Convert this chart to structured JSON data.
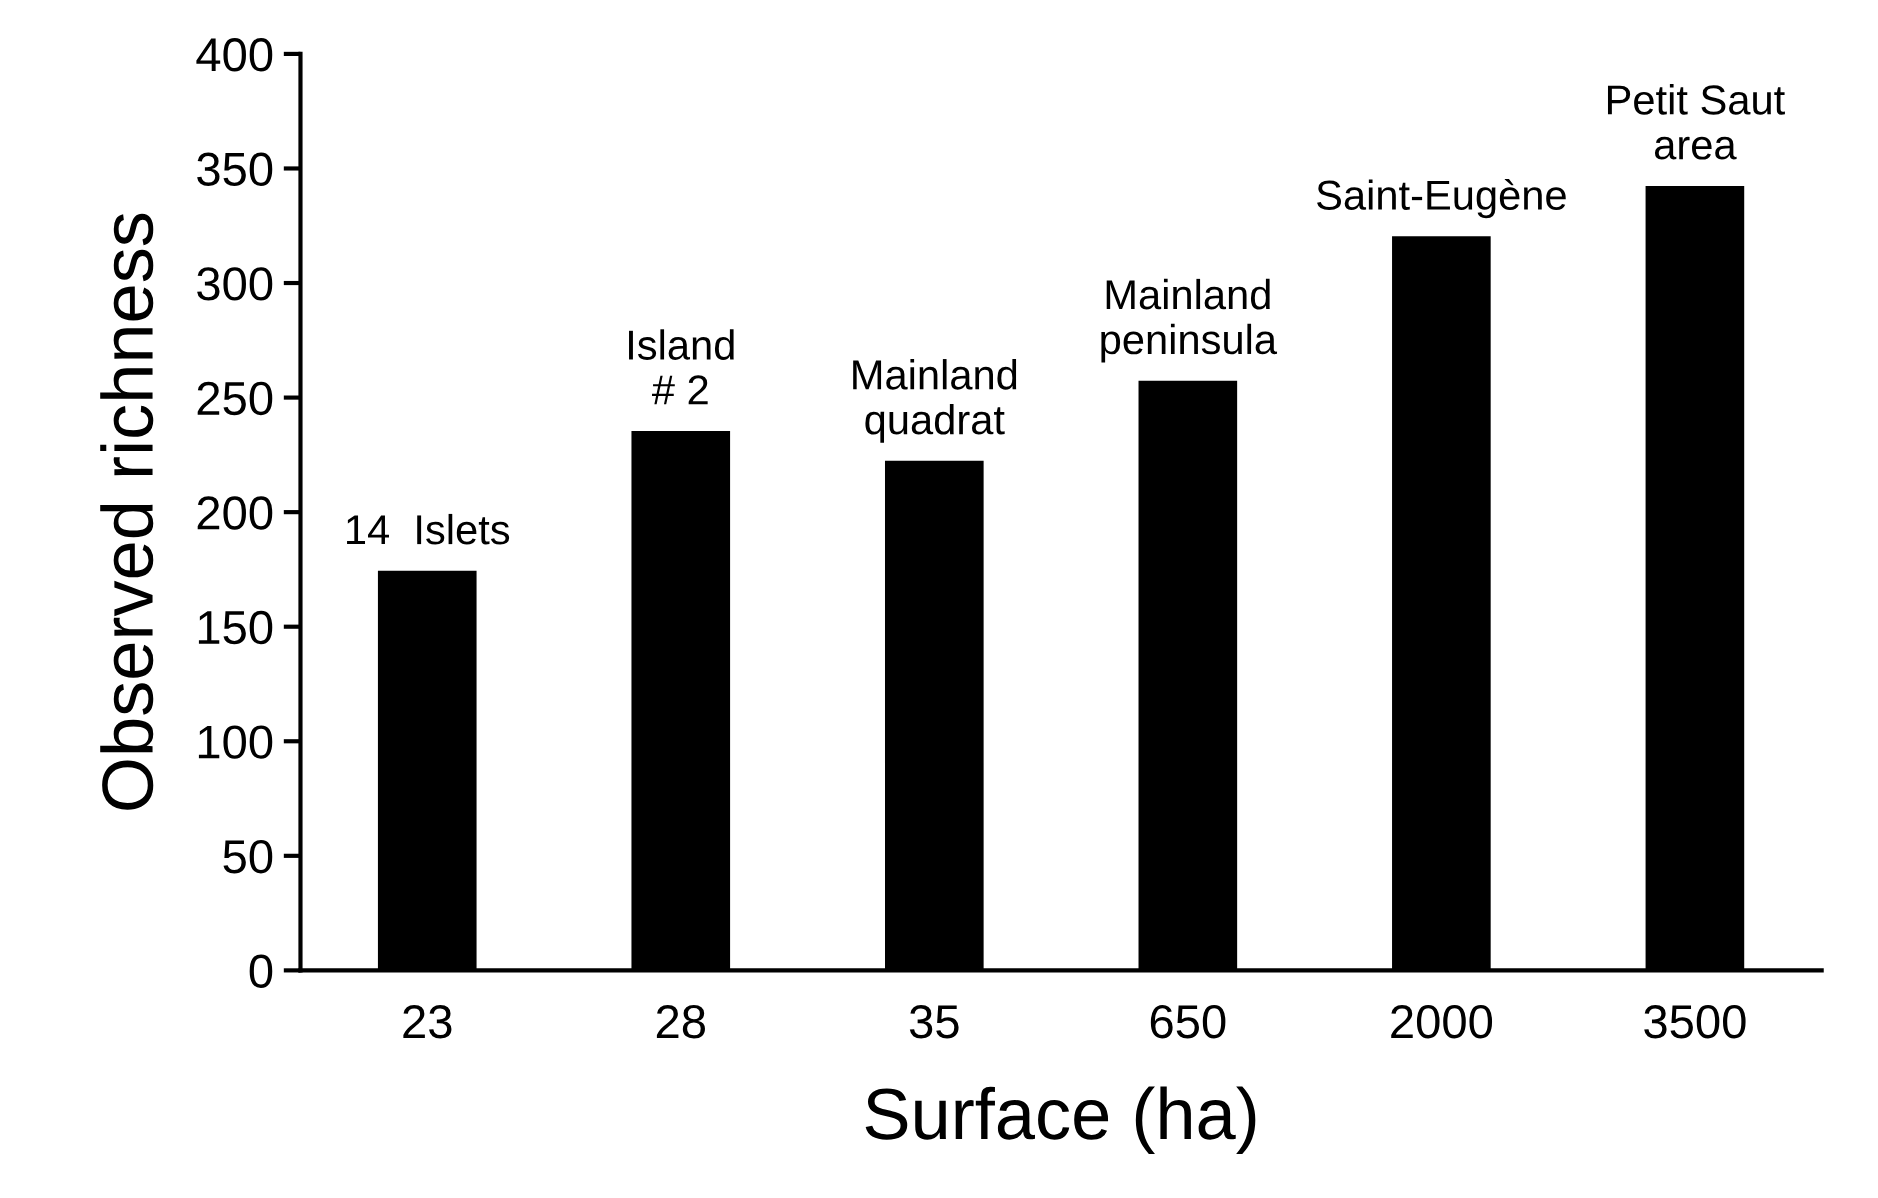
{
  "chart_data": {
    "type": "bar",
    "xlabel": "Surface (ha)",
    "ylabel": "Observed richness",
    "categories": [
      "23",
      "28",
      "35",
      "650",
      "2000",
      "3500"
    ],
    "values": [
      175,
      236,
      223,
      258,
      321,
      343
    ],
    "color": "#000000",
    "ylim": [
      0,
      400
    ],
    "yticks": [
      0,
      50,
      100,
      150,
      200,
      250,
      300,
      350,
      400
    ],
    "grid": false,
    "annotations": [
      {
        "text": "14  Islets",
        "x": "23",
        "y": 175
      },
      {
        "text": "Island\n# 2",
        "x": "28",
        "y": 236
      },
      {
        "text": "Mainland\nquadrat",
        "x": "35",
        "y": 223
      },
      {
        "text": "Mainland\npeninsula",
        "x": "650",
        "y": 258
      },
      {
        "text": "Saint-Eugène",
        "x": "2000",
        "y": 321
      },
      {
        "text": "Petit Saut\narea",
        "x": "3500",
        "y": 343
      }
    ]
  }
}
